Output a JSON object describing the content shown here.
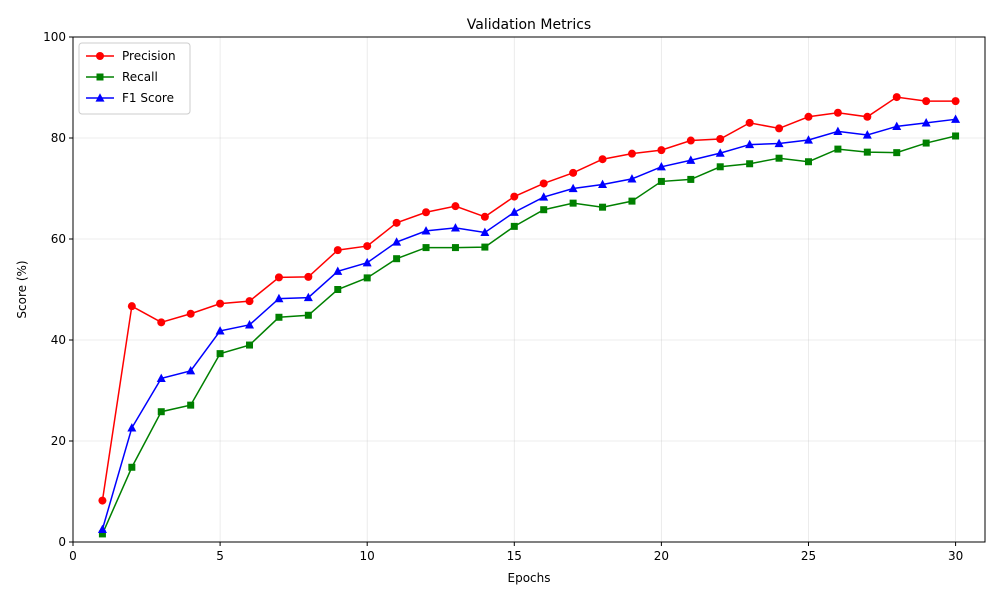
{
  "chart_data": {
    "type": "line",
    "title": "Validation Metrics",
    "xlabel": "Epochs",
    "ylabel": "Score (%)",
    "xlim": [
      0,
      31
    ],
    "ylim": [
      0,
      100
    ],
    "xticks": [
      0,
      5,
      10,
      15,
      20,
      25,
      30
    ],
    "yticks": [
      0,
      20,
      40,
      60,
      80,
      100
    ],
    "grid": true,
    "legend_position": "top-left",
    "x": [
      1,
      2,
      3,
      4,
      5,
      6,
      7,
      8,
      9,
      10,
      11,
      12,
      13,
      14,
      15,
      16,
      17,
      18,
      19,
      20,
      21,
      22,
      23,
      24,
      25,
      26,
      27,
      28,
      29,
      30
    ],
    "series": [
      {
        "name": "Precision",
        "color": "#ff0000",
        "marker": "circle",
        "values": [
          8.2,
          46.7,
          43.5,
          45.2,
          47.2,
          47.7,
          52.4,
          52.5,
          57.8,
          58.6,
          63.2,
          65.3,
          66.5,
          64.4,
          68.4,
          71.0,
          73.1,
          75.8,
          76.9,
          77.6,
          79.5,
          79.8,
          83.0,
          81.9,
          84.2,
          85.0,
          84.2,
          88.1,
          87.3,
          87.3
        ]
      },
      {
        "name": "Recall",
        "color": "#008000",
        "marker": "square",
        "values": [
          1.6,
          14.8,
          25.8,
          27.1,
          37.3,
          39.0,
          44.5,
          44.9,
          50.0,
          52.3,
          56.1,
          58.3,
          58.3,
          58.4,
          62.5,
          65.8,
          67.1,
          66.3,
          67.5,
          71.4,
          71.8,
          74.3,
          74.9,
          76.0,
          75.3,
          77.8,
          77.2,
          77.1,
          79.0,
          80.4
        ]
      },
      {
        "name": "F1 Score",
        "color": "#0000ff",
        "marker": "triangle",
        "values": [
          2.5,
          22.6,
          32.4,
          33.9,
          41.8,
          43.0,
          48.2,
          48.4,
          53.6,
          55.3,
          59.4,
          61.6,
          62.2,
          61.3,
          65.3,
          68.3,
          70.0,
          70.8,
          71.9,
          74.3,
          75.6,
          77.0,
          78.7,
          78.9,
          79.6,
          81.3,
          80.6,
          82.3,
          83.0,
          83.7
        ]
      }
    ]
  }
}
